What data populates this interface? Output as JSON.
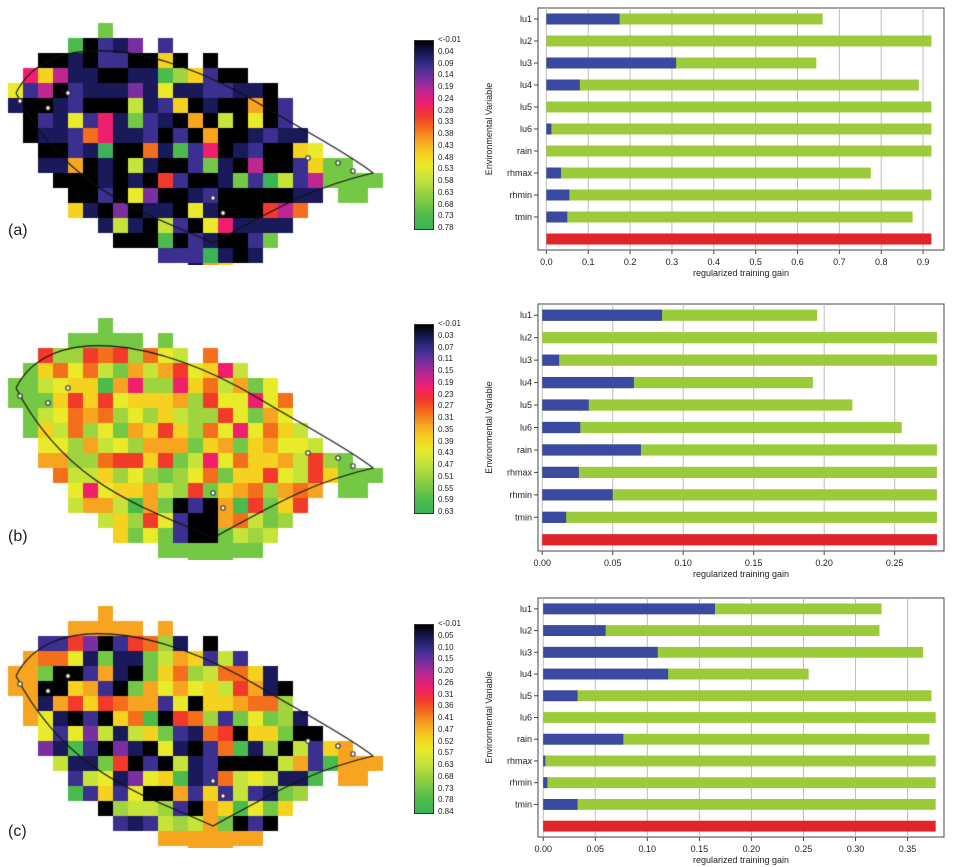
{
  "panels": [
    {
      "label": "(a)",
      "colorbar_ticks": [
        "<-0.01",
        "0.04",
        "0.09",
        "0.14",
        "0.19",
        "0.24",
        "0.28",
        "0.33",
        "0.38",
        "0.43",
        "0.48",
        "0.53",
        "0.58",
        "0.63",
        "0.68",
        "0.73",
        "0.78"
      ]
    },
    {
      "label": "(b)",
      "colorbar_ticks": [
        "<-0.01",
        "0.03",
        "0.07",
        "0.11",
        "0.15",
        "0.19",
        "0.23",
        "0.27",
        "0.31",
        "0.35",
        "0.39",
        "0.43",
        "0.47",
        "0.51",
        "0.55",
        "0.59",
        "0.63"
      ]
    },
    {
      "label": "(c)",
      "colorbar_ticks": [
        "<-0.01",
        "0.05",
        "0.10",
        "0.15",
        "0.20",
        "0.26",
        "0.31",
        "0.36",
        "0.41",
        "0.47",
        "0.52",
        "0.57",
        "0.63",
        "0.68",
        "0.73",
        "0.78",
        "0.84"
      ]
    }
  ],
  "colors": {
    "without_variable": "#9bcb3b",
    "with_only_variable": "#3a4aa0",
    "all_variables": "#e0242a"
  },
  "chart_data": [
    {
      "type": "bar",
      "orientation": "horizontal",
      "ylabel": "Environmental Variable",
      "xlabel": "regularized training gain",
      "categories": [
        "lu1",
        "lu2",
        "lu3",
        "lu4",
        "lu5",
        "lu6",
        "rain",
        "rhmax",
        "rhmin",
        "tmin"
      ],
      "xlim": [
        -0.02,
        0.95
      ],
      "xticks": [
        "0.0",
        "0.1",
        "0.2",
        "0.3",
        "0.4",
        "0.5",
        "0.6",
        "0.7",
        "0.8",
        "0.9"
      ],
      "series": [
        {
          "values": [
            0.66,
            0.92,
            0.645,
            0.89,
            0.92,
            0.92,
            0.92,
            0.775,
            0.92,
            0.875
          ]
        },
        {
          "values": [
            0.175,
            0.0,
            0.31,
            0.08,
            0.0,
            0.012,
            0.0,
            0.035,
            0.055,
            0.05
          ]
        }
      ],
      "all_variables": 0.92,
      "grid": true
    },
    {
      "type": "bar",
      "orientation": "horizontal",
      "ylabel": "Environmental Variable",
      "xlabel": "regularized training gain",
      "categories": [
        "lu1",
        "lu2",
        "lu3",
        "lu4",
        "lu5",
        "lu6",
        "rain",
        "rhmax",
        "rhmin",
        "tmin"
      ],
      "xlim": [
        -0.003,
        0.285
      ],
      "xticks": [
        "0.00",
        "0.05",
        "0.10",
        "0.15",
        "0.20",
        "0.25"
      ],
      "series": [
        {
          "values": [
            0.195,
            0.28,
            0.28,
            0.192,
            0.22,
            0.255,
            0.28,
            0.28,
            0.28,
            0.28
          ]
        },
        {
          "values": [
            0.085,
            0.0,
            0.012,
            0.065,
            0.033,
            0.027,
            0.07,
            0.026,
            0.05,
            0.017
          ]
        }
      ],
      "all_variables": 0.28,
      "grid": true
    },
    {
      "type": "bar",
      "orientation": "horizontal",
      "ylabel": "Environmental Variable",
      "xlabel": "regularized training gain",
      "categories": [
        "lu1",
        "lu2",
        "lu3",
        "lu4",
        "lu5",
        "lu6",
        "rain",
        "rhmax",
        "rhmin",
        "tmin"
      ],
      "xlim": [
        -0.005,
        0.385
      ],
      "xticks": [
        "0.00",
        "0.05",
        "0.10",
        "0.15",
        "0.20",
        "0.25",
        "0.30",
        "0.35"
      ],
      "series": [
        {
          "values": [
            0.325,
            0.323,
            0.365,
            0.255,
            0.373,
            0.377,
            0.371,
            0.377,
            0.377,
            0.377
          ]
        },
        {
          "values": [
            0.165,
            0.06,
            0.11,
            0.12,
            0.033,
            0.0,
            0.077,
            0.002,
            0.004,
            0.033
          ]
        }
      ],
      "all_variables": 0.377,
      "grid": true
    }
  ]
}
